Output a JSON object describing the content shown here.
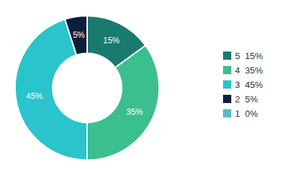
{
  "chart_data": {
    "type": "donut",
    "categories": [
      "5  15%",
      "4  35%",
      "3  45%",
      "2  5%",
      "1  0%"
    ],
    "values": [
      15,
      35,
      45,
      5,
      0.001
    ],
    "value_labels": [
      "15%",
      "35%",
      "45%",
      "5%",
      null
    ],
    "colors": [
      "#1b7a6f",
      "#3bbf8e",
      "#29c4cc",
      "#0d1f3c",
      "#5ab8c4"
    ],
    "legend": "right",
    "data_labels": true
  }
}
